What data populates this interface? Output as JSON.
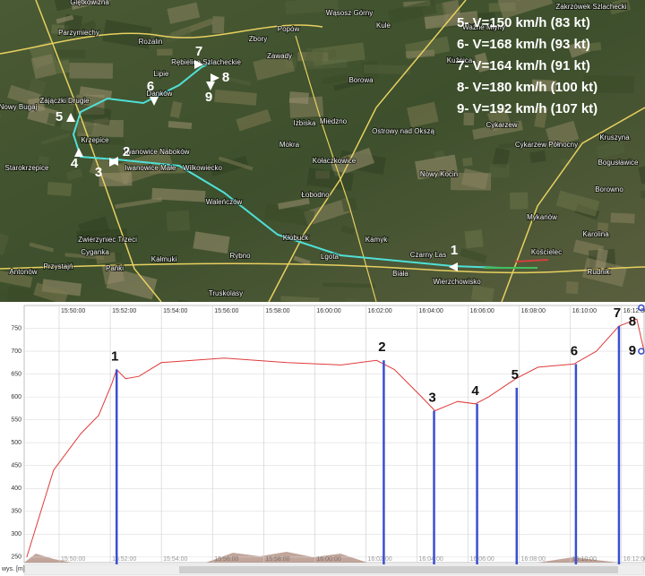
{
  "map": {
    "labels": [
      "Glętkowizna",
      "Parzymiechy",
      "Rozalin",
      "Rębielice Szlacheckie",
      "Lipie",
      "Danków",
      "Zbory",
      "Popów",
      "Wąsosz Górny",
      "Kule",
      "Zawady",
      "Borowa",
      "Zajączki Drugie",
      "Nowy Bugaj",
      "Krzepice",
      "Iwanowice Naboków",
      "Iwanowice Małe",
      "Starokrzepice",
      "Wilkowiecko",
      "Mokra",
      "Izbiska",
      "Miedzno",
      "Ostrowy nad Okszą",
      "Kołaczkowice",
      "Łobodno",
      "Waleńczów",
      "Kłobuck",
      "Lgota",
      "Kamyk",
      "Czarny Las",
      "Biała",
      "Wierzchowisko",
      "Cyganka",
      "Przystajń",
      "Pańki",
      "Kałmuki",
      "Rybno",
      "Truskolasy",
      "Antonów",
      "Zwierzyniec Trzeci",
      "Cykarzew Północny",
      "Cykarzew",
      "Nowy Kocin",
      "Mykanów",
      "Kościelec",
      "Rudnik",
      "Karolina",
      "Borowno",
      "Bogusławice",
      "Kruszyna",
      "Zakrzówek Szlachecki",
      "Ważne Młyny",
      "Kuźnica"
    ],
    "route_points": [
      "1",
      "2",
      "3",
      "4",
      "5",
      "6",
      "7",
      "8",
      "9"
    ],
    "speeds": [
      "5- V=150 km/h (83 kt)",
      "6- V=168 km/h (93 kt)",
      "7- V=164 km/h (91 kt)",
      "8- V=180 km/h (100 kt)",
      "9- V=192 km/h (107 kt)"
    ]
  },
  "chart_data": {
    "type": "line",
    "y_label": "wys. [m]",
    "color": "#e03a3a",
    "grid": true,
    "x": [
      "15:48:44",
      "15:49:47",
      "15:50:51",
      "15:51:33",
      "15:52:04",
      "15:52:15",
      "15:52:36",
      "15:53:07",
      "15:54:00",
      "15:56:27",
      "15:58:55",
      "16:01:01",
      "16:02:25",
      "16:03:07",
      "16:04:11",
      "16:04:42",
      "16:05:35",
      "16:06:17",
      "16:06:48",
      "16:07:52",
      "16:08:44",
      "16:10:08",
      "16:11:01",
      "16:11:54",
      "16:12:36",
      "16:12:53"
    ],
    "values": [
      250,
      440,
      520,
      560,
      630,
      660,
      640,
      645,
      675,
      685,
      675,
      670,
      680,
      660,
      600,
      570,
      590,
      585,
      600,
      640,
      665,
      672,
      700,
      755,
      770,
      700
    ],
    "xlim": [
      "15:48:38",
      "16:12:53"
    ],
    "xticks": [
      "15:50:00",
      "15:52:00",
      "15:54:00",
      "15:56:00",
      "15:58:00",
      "16:00:00",
      "16:02:00",
      "16:04:00",
      "16:06:00",
      "16:08:00",
      "16:10:00",
      "16:12:00"
    ],
    "ylim": [
      238,
      800
    ],
    "yticks": [
      250,
      300,
      350,
      400,
      450,
      500,
      550,
      600,
      650,
      700,
      750
    ],
    "marker_color": "#3a4fd0",
    "markers": [
      {
        "label": "1",
        "x": "15:52:15",
        "value": 660
      },
      {
        "label": "2",
        "x": "16:02:42",
        "value": 680
      },
      {
        "label": "3",
        "x": "16:04:40",
        "value": 570
      },
      {
        "label": "4",
        "x": "16:06:21",
        "value": 585
      },
      {
        "label": "5",
        "x": "16:07:54",
        "value": 620
      },
      {
        "label": "6",
        "x": "16:10:13",
        "value": 672
      },
      {
        "label": "7",
        "x": "16:11:54",
        "value": 755
      },
      {
        "label": "8",
        "x": "16:12:38",
        "value": 795
      },
      {
        "label": "9",
        "x": "16:12:38",
        "value": 700
      }
    ]
  }
}
